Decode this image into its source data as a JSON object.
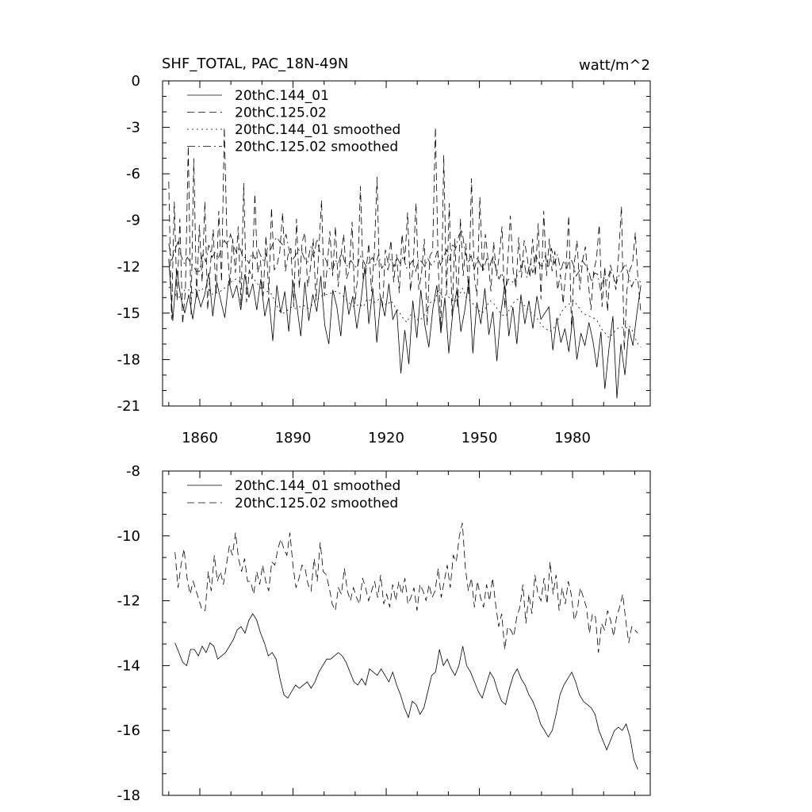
{
  "chart_data": [
    {
      "type": "line",
      "title": "SHF_TOTAL, PAC_18N-49N",
      "units": "watt/m^2",
      "xlim": [
        1848,
        2005
      ],
      "ylim": [
        -21,
        0
      ],
      "xticks": [
        1860,
        1890,
        1920,
        1950,
        1980
      ],
      "xtick_labels": [
        "1860",
        "1890",
        "1920",
        "1950",
        "1980"
      ],
      "yticks": [
        0,
        -3,
        -6,
        -9,
        -12,
        -15,
        -18,
        -21
      ],
      "ytick_labels": [
        "0",
        "-3",
        "-6",
        "-9",
        "-12",
        "-15",
        "-18",
        "-21"
      ],
      "legend": [
        "20thC.144_01",
        "20thC.125.02",
        "20thC.144_01 smoothed",
        "20thC.125.02 smoothed"
      ],
      "series": [
        {
          "name": "20thC.144_01",
          "style": "solid",
          "x_start": 1850,
          "values": [
            -11.5,
            -15.5,
            -12.2,
            -14.0,
            -15.0,
            -13.8,
            -15.4,
            -13.6,
            -14.6,
            -13.8,
            -12.4,
            -15.2,
            -13.0,
            -14.2,
            -15.3,
            -12.9,
            -14.0,
            -13.2,
            -14.8,
            -12.5,
            -14.0,
            -13.1,
            -14.8,
            -12.8,
            -15.2,
            -14.0,
            -16.8,
            -13.2,
            -15.0,
            -13.6,
            -16.2,
            -12.9,
            -14.5,
            -16.5,
            -13.0,
            -15.5,
            -13.8,
            -14.9,
            -12.6,
            -15.8,
            -17.0,
            -13.5,
            -14.6,
            -16.5,
            -13.2,
            -15.1,
            -13.9,
            -16.0,
            -14.3,
            -12.0,
            -15.7,
            -13.4,
            -16.9,
            -14.0,
            -15.2,
            -13.1,
            -15.4,
            -14.8,
            -18.9,
            -16.1,
            -18.3,
            -14.2,
            -16.6,
            -13.5,
            -15.8,
            -17.2,
            -14.7,
            -13.2,
            -16.3,
            -14.0,
            -17.6,
            -14.9,
            -13.5,
            -16.2,
            -14.8,
            -12.8,
            -17.6,
            -14.3,
            -15.7,
            -13.4,
            -16.4,
            -14.9,
            -18.1,
            -15.0,
            -13.2,
            -16.5,
            -14.6,
            -17.0,
            -13.8,
            -15.7,
            -14.2,
            -16.0,
            -13.9,
            -15.4,
            -15.0,
            -14.6,
            -17.4,
            -15.3,
            -16.9,
            -16.0,
            -17.5,
            -15.2,
            -18.0,
            -16.3,
            -17.1,
            -15.6,
            -16.8,
            -18.5,
            -16.2,
            -19.9,
            -17.3,
            -15.2,
            -20.5,
            -17.0,
            -19.0,
            -16.0,
            -17.1,
            -15.0,
            -13.2
          ]
        },
        {
          "name": "20thC.125.02",
          "style": "dashed",
          "x_start": 1850,
          "values": [
            -6.5,
            -15.4,
            -7.8,
            -14.2,
            -8.9,
            -15.7,
            -13.5,
            -4.2,
            -15.1,
            -5.0,
            -14.1,
            -9.3,
            -13.0,
            -7.8,
            -14.8,
            -11.9,
            -9.6,
            -13.8,
            -8.4,
            -13.0,
            -3.0,
            -10.6,
            -13.2,
            -10.2,
            -12.4,
            -9.4,
            -14.5,
            -6.6,
            -14.3,
            -12.2,
            -12.8,
            -7.3,
            -12.4,
            -11.6,
            -13.9,
            -10.0,
            -13.8,
            -8.2,
            -12.2,
            -11.9,
            -11.0,
            -8.5,
            -12.3,
            -11.2,
            -10.8,
            -14.6,
            -8.9,
            -13.4,
            -10.4,
            -9.8,
            -13.3,
            -12.1,
            -10.2,
            -14.2,
            -11.0,
            -7.7,
            -13.9,
            -12.1,
            -9.7,
            -12.6,
            -9.4,
            -13.3,
            -11.3,
            -9.9,
            -12.8,
            -12.2,
            -9.1,
            -14.4,
            -12.7,
            -6.8,
            -12.8,
            -12.4,
            -10.5,
            -13.6,
            -11.2,
            -6.2,
            -13.8,
            -14.6,
            -10.9,
            -11.8,
            -10.3,
            -13.0,
            -11.2,
            -13.7,
            -9.9,
            -11.6,
            -8.5,
            -13.6,
            -12.0,
            -7.9,
            -13.5,
            -12.4,
            -10.2,
            -15.8,
            -11.3,
            -11.0,
            -3.0,
            -12.0,
            -16.0,
            -4.8,
            -13.8,
            -7.9,
            -15.2,
            -10.2,
            -14.7,
            -8.9,
            -12.6,
            -10.5,
            -13.9,
            -6.3,
            -12.6,
            -13.9,
            -7.5,
            -12.4,
            -9.9,
            -11.6,
            -13.6,
            -10.4,
            -12.6,
            -11.3,
            -9.4,
            -14.7,
            -11.8,
            -8.7,
            -12.2,
            -13.4,
            -10.1,
            -12.7,
            -10.3,
            -11.3,
            -12.7,
            -10.2,
            -12.6,
            -9.2,
            -14.1,
            -8.4,
            -12.6,
            -10.2,
            -12.3,
            -11.0,
            -13.5,
            -12.5,
            -14.4,
            -12.2,
            -8.7,
            -16.0,
            -11.8,
            -10.3,
            -13.5,
            -11.6,
            -10.7,
            -12.9,
            -14.8,
            -12.3,
            -11.5,
            -9.3,
            -14.6,
            -12.0,
            -14.9,
            -11.9,
            -12.5,
            -13.5,
            -11.2,
            -8.1,
            -17.4,
            -13.5,
            -12.2,
            -11.8,
            -9.8,
            -13.0,
            -15.0
          ]
        },
        {
          "name": "20thC.144_01 smoothed",
          "style": "dotted",
          "x_start": 1850,
          "values": [
            -13.3,
            -13.6,
            -13.9,
            -14.0,
            -13.5,
            -13.5,
            -13.7,
            -13.4,
            -13.6,
            -13.3,
            -13.4,
            -13.8,
            -13.7,
            -13.6,
            -13.4,
            -13.2,
            -12.9,
            -12.8,
            -13.0,
            -12.6,
            -12.4,
            -12.6,
            -13.0,
            -13.3,
            -13.7,
            -13.6,
            -13.8,
            -14.4,
            -14.9,
            -15.0,
            -14.8,
            -14.6,
            -14.7,
            -14.6,
            -14.5,
            -14.7,
            -14.5,
            -14.2,
            -14.0,
            -13.8,
            -13.8,
            -13.7,
            -13.6,
            -13.7,
            -13.9,
            -14.2,
            -14.5,
            -14.6,
            -14.4,
            -14.6,
            -14.1,
            -14.2,
            -14.3,
            -14.1,
            -14.3,
            -14.5,
            -14.2,
            -14.6,
            -14.9,
            -15.3,
            -15.6,
            -15.1,
            -15.2,
            -15.5,
            -15.3,
            -14.8,
            -14.3,
            -14.2,
            -13.5,
            -14.0,
            -13.8,
            -14.1,
            -14.3,
            -14.0,
            -13.4,
            -14.0,
            -14.2,
            -14.5,
            -14.8,
            -15.0,
            -14.6,
            -14.2,
            -14.4,
            -14.8,
            -15.1,
            -15.2,
            -14.7,
            -14.3,
            -14.1,
            -14.4,
            -14.6,
            -14.9,
            -15.1,
            -15.4,
            -15.8,
            -16.0,
            -16.2,
            -16.0,
            -15.5,
            -14.9,
            -14.6,
            -14.4,
            -14.2,
            -14.5,
            -14.9,
            -15.1,
            -15.2,
            -15.3,
            -15.5,
            -16.0,
            -16.3,
            -16.6,
            -16.3,
            -16.0,
            -15.9,
            -16.0,
            -15.8,
            -16.2,
            -16.9,
            -17.2
          ]
        },
        {
          "name": "20thC.125.02 smoothed",
          "style": "dashdot",
          "x_start": 1850,
          "values": [
            -10.5,
            -11.6,
            -10.9,
            -10.4,
            -11.3,
            -11.8,
            -11.4,
            -11.7,
            -12.0,
            -12.3,
            -12.3,
            -11.1,
            -11.7,
            -10.6,
            -11.4,
            -11.1,
            -11.5,
            -10.9,
            -10.3,
            -10.6,
            -9.9,
            -10.7,
            -11.1,
            -10.7,
            -11.4,
            -11.4,
            -11.8,
            -11.1,
            -11.5,
            -10.9,
            -11.4,
            -11.7,
            -10.8,
            -10.9,
            -10.4,
            -10.1,
            -10.4,
            -10.6,
            -9.9,
            -10.9,
            -11.6,
            -11.3,
            -10.9,
            -11.0,
            -11.5,
            -11.7,
            -10.7,
            -11.4,
            -10.2,
            -11.1,
            -11.2,
            -11.6,
            -12.1,
            -12.3,
            -11.6,
            -11.8,
            -11.0,
            -11.7,
            -12.0,
            -11.6,
            -11.9,
            -12.1,
            -11.3,
            -11.6,
            -12.0,
            -11.7,
            -11.4,
            -11.9,
            -11.2,
            -12.1,
            -11.8,
            -12.2,
            -11.5,
            -12.0,
            -11.4,
            -11.8,
            -11.3,
            -12.1,
            -11.9,
            -11.6,
            -12.3,
            -11.5,
            -11.7,
            -12.0,
            -11.5,
            -11.9,
            -11.7,
            -11.0,
            -11.9,
            -11.4,
            -10.9,
            -11.6,
            -10.6,
            -10.8,
            -10.0,
            -9.6,
            -11.0,
            -11.7,
            -11.3,
            -12.2,
            -11.4,
            -11.9,
            -12.2,
            -11.5,
            -12.0,
            -11.3,
            -12.1,
            -12.8,
            -12.4,
            -13.5,
            -12.8,
            -12.9,
            -13.1,
            -12.5,
            -12.2,
            -11.5,
            -12.7,
            -11.8,
            -12.4,
            -11.2,
            -11.8,
            -12.0,
            -11.3,
            -12.1,
            -10.8,
            -11.8,
            -11.2,
            -12.3,
            -11.6,
            -12.1,
            -11.4,
            -11.8,
            -12.6,
            -12.3,
            -11.6,
            -11.9,
            -12.2,
            -13.0,
            -12.4,
            -12.5,
            -13.6,
            -12.7,
            -12.9,
            -12.3,
            -12.6,
            -13.1,
            -12.5,
            -12.2,
            -11.8,
            -12.6,
            -13.3,
            -12.8,
            -12.9,
            -13.0
          ]
        }
      ]
    },
    {
      "type": "line",
      "title": "",
      "xlim": [
        1848,
        2005
      ],
      "ylim": [
        -18,
        -8
      ],
      "yticks": [
        -8,
        -10,
        -12,
        -14,
        -16,
        -18
      ],
      "ytick_labels": [
        "-8",
        "-10",
        "-12",
        "-14",
        "-16",
        "-18"
      ],
      "legend": [
        "20thC.144_01 smoothed",
        "20thC.125.02 smoothed"
      ],
      "series": [
        {
          "name": "20thC.144_01 smoothed",
          "style": "solid",
          "x_start": 1852,
          "values": [
            -13.3,
            -13.6,
            -13.9,
            -14.0,
            -13.5,
            -13.5,
            -13.7,
            -13.4,
            -13.6,
            -13.3,
            -13.4,
            -13.8,
            -13.7,
            -13.6,
            -13.4,
            -13.2,
            -12.9,
            -12.8,
            -13.0,
            -12.6,
            -12.4,
            -12.6,
            -13.0,
            -13.3,
            -13.7,
            -13.6,
            -13.8,
            -14.4,
            -14.9,
            -15.0,
            -14.8,
            -14.6,
            -14.7,
            -14.6,
            -14.5,
            -14.7,
            -14.5,
            -14.2,
            -14.0,
            -13.8,
            -13.8,
            -13.7,
            -13.6,
            -13.7,
            -13.9,
            -14.2,
            -14.5,
            -14.6,
            -14.4,
            -14.6,
            -14.1,
            -14.2,
            -14.3,
            -14.1,
            -14.3,
            -14.5,
            -14.2,
            -14.6,
            -14.9,
            -15.3,
            -15.6,
            -15.1,
            -15.2,
            -15.5,
            -15.3,
            -14.8,
            -14.3,
            -14.2,
            -13.5,
            -14.0,
            -13.8,
            -14.1,
            -14.3,
            -14.0,
            -13.4,
            -14.0,
            -14.2,
            -14.5,
            -14.8,
            -15.0,
            -14.6,
            -14.2,
            -14.4,
            -14.8,
            -15.1,
            -15.2,
            -14.7,
            -14.3,
            -14.1,
            -14.4,
            -14.6,
            -14.9,
            -15.1,
            -15.4,
            -15.8,
            -16.0,
            -16.2,
            -16.0,
            -15.5,
            -14.9,
            -14.6,
            -14.4,
            -14.2,
            -14.5,
            -14.9,
            -15.1,
            -15.2,
            -15.3,
            -15.5,
            -16.0,
            -16.3,
            -16.6,
            -16.3,
            -16.0,
            -15.9,
            -16.0,
            -15.8,
            -16.2,
            -16.9,
            -17.2
          ]
        },
        {
          "name": "20thC.125.02 smoothed",
          "style": "dashed",
          "x_start": 1852,
          "values": [
            -10.5,
            -11.6,
            -10.9,
            -10.4,
            -11.3,
            -11.8,
            -11.4,
            -11.7,
            -12.0,
            -12.3,
            -12.3,
            -11.1,
            -11.7,
            -10.6,
            -11.4,
            -11.1,
            -11.5,
            -10.9,
            -10.3,
            -10.6,
            -9.9,
            -10.7,
            -11.1,
            -10.7,
            -11.4,
            -11.4,
            -11.8,
            -11.1,
            -11.5,
            -10.9,
            -11.4,
            -11.7,
            -10.8,
            -10.9,
            -10.4,
            -10.1,
            -10.4,
            -10.6,
            -9.9,
            -10.9,
            -11.6,
            -11.3,
            -10.9,
            -11.0,
            -11.5,
            -11.7,
            -10.7,
            -11.4,
            -10.2,
            -11.1,
            -11.2,
            -11.6,
            -12.1,
            -12.3,
            -11.6,
            -11.8,
            -11.0,
            -11.7,
            -12.0,
            -11.6,
            -11.9,
            -12.1,
            -11.3,
            -11.6,
            -12.0,
            -11.7,
            -11.4,
            -11.9,
            -11.2,
            -12.1,
            -11.8,
            -12.2,
            -11.5,
            -12.0,
            -11.4,
            -11.8,
            -11.3,
            -12.1,
            -11.9,
            -11.6,
            -12.3,
            -11.5,
            -11.7,
            -12.0,
            -11.5,
            -11.9,
            -11.7,
            -11.0,
            -11.9,
            -11.4,
            -10.9,
            -11.6,
            -10.6,
            -10.8,
            -10.0,
            -9.6,
            -11.0,
            -11.7,
            -11.3,
            -12.2,
            -11.4,
            -11.9,
            -12.2,
            -11.5,
            -12.0,
            -11.3,
            -12.1,
            -12.8,
            -12.4,
            -13.5,
            -12.8,
            -12.9,
            -13.1,
            -12.5,
            -12.2,
            -11.5,
            -12.7,
            -11.8,
            -12.4,
            -11.2,
            -11.8,
            -12.0,
            -11.3,
            -12.1,
            -10.8,
            -11.8,
            -11.2,
            -12.3,
            -11.6,
            -12.1,
            -11.4,
            -11.8,
            -12.6,
            -12.3,
            -11.6,
            -11.9,
            -12.2,
            -13.0,
            -12.4,
            -12.5,
            -13.6,
            -12.7,
            -12.9,
            -12.3,
            -12.6,
            -13.1,
            -12.5,
            -12.2,
            -11.8,
            -12.6,
            -13.3,
            -12.8,
            -12.9,
            -13.0
          ]
        }
      ]
    }
  ]
}
